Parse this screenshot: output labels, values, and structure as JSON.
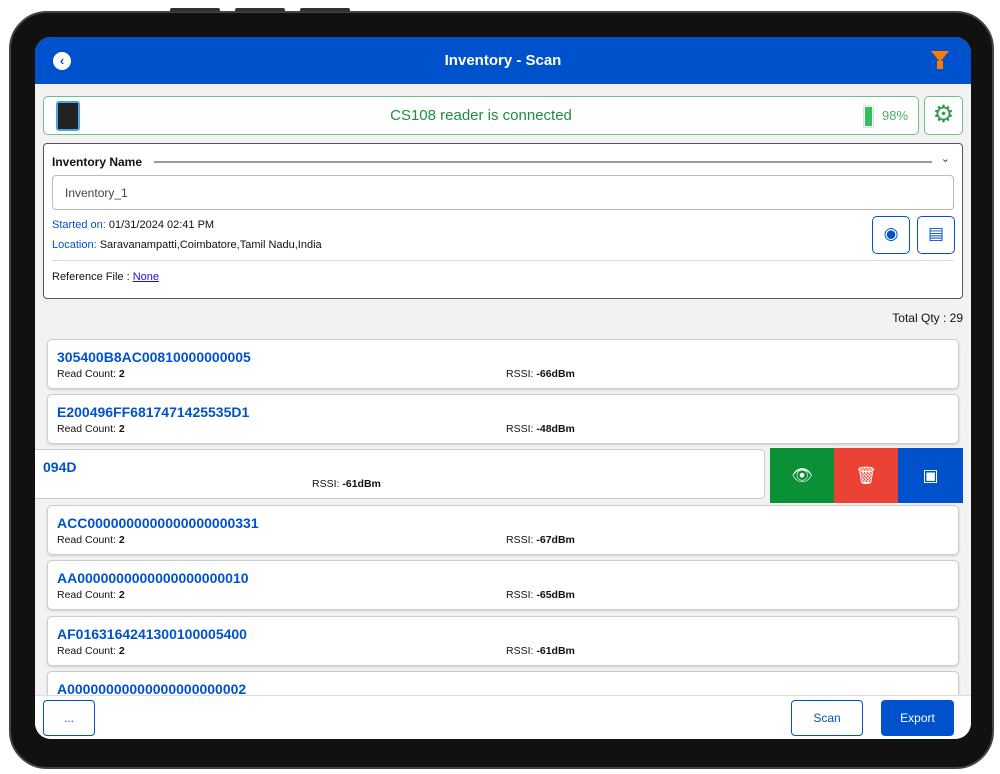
{
  "header": {
    "title": "Inventory - Scan",
    "back_icon": "chevron-left-circle-icon",
    "filter_icon": "filter-icon",
    "filter_color": "#ff7a00",
    "bar_color": "#0052cc"
  },
  "connection": {
    "status": "CS108 reader is connected",
    "battery_percent": "98%",
    "battery_level": 98,
    "status_color": "#1e8e3e"
  },
  "inventory": {
    "name_label": "Inventory Name",
    "name_value": "Inventory_1",
    "started_label": "Started on:",
    "started_value": "01/31/2024 02:41 PM",
    "location_label": "Location:",
    "location_value": "Saravanampatti,Coimbatore,Tamil Nadu,India",
    "reference_label": "Reference File :",
    "reference_value": "None"
  },
  "total_qty": "Total Qty : 29",
  "tags": [
    {
      "id": "305400B8AC00810000000005",
      "read_label": "Read Count:",
      "read": "2",
      "rssi_label": "RSSI:",
      "rssi": "-66dBm"
    },
    {
      "id": "E200496FF6817471425535D1",
      "read_label": "Read Count:",
      "read": "2",
      "rssi_label": "RSSI:",
      "rssi": "-48dBm"
    }
  ],
  "swiped_tag": {
    "id_fragment": "094D",
    "rssi_label": "RSSI:",
    "rssi": "-61dBm",
    "actions": [
      {
        "icon": "eye-icon",
        "color": "#0a9135"
      },
      {
        "icon": "trash-icon",
        "color": "#ea4335"
      },
      {
        "icon": "rfid-tag-icon",
        "color": "#0052cc"
      }
    ]
  },
  "tags_after": [
    {
      "id": "ACC0000000000000000000331",
      "read_label": "Read Count:",
      "read": "2",
      "rssi_label": "RSSI:",
      "rssi": "-67dBm"
    },
    {
      "id": "AA0000000000000000000010",
      "read_label": "Read Count:",
      "read": "2",
      "rssi_label": "RSSI:",
      "rssi": "-65dBm"
    },
    {
      "id": "AF0163164241300100005400",
      "read_label": "Read Count:",
      "read": "2",
      "rssi_label": "RSSI:",
      "rssi": "-61dBm"
    },
    {
      "id": "A00000000000000000000002"
    }
  ],
  "footer": {
    "more_label": "...",
    "scan_label": "Scan",
    "export_label": "Export"
  }
}
